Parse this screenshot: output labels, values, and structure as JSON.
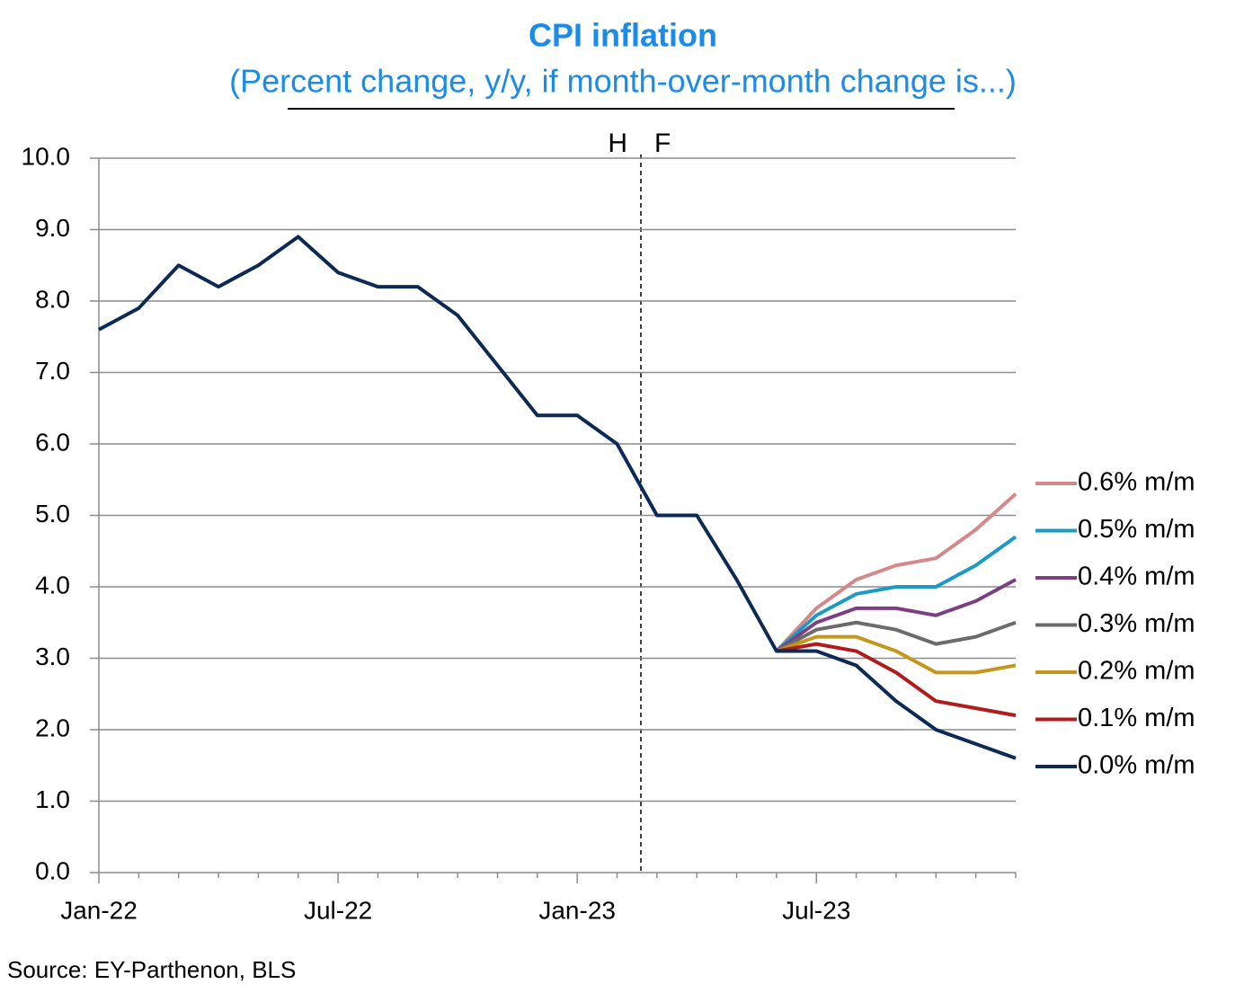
{
  "chart_data": {
    "type": "line",
    "title": "CPI inflation",
    "subtitle": "(Percent change, y/y, if month-over-month change is...)",
    "source": "Source: EY-Parthenon, BLS",
    "annotations": [
      "H",
      "F"
    ],
    "categories": [
      "Jan-22",
      null,
      null,
      null,
      null,
      null,
      "Jul-22",
      null,
      null,
      null,
      null,
      null,
      "Jan-23",
      null,
      null,
      null,
      null,
      null,
      "Jul-23",
      null,
      null,
      null,
      null,
      null
    ],
    "ylim": [
      0,
      10
    ],
    "yticks": [
      {
        "value": 0,
        "label": "0.0"
      },
      {
        "value": 1,
        "label": "1.0"
      },
      {
        "value": 2,
        "label": "2.0"
      },
      {
        "value": 3,
        "label": "3.0"
      },
      {
        "value": 4,
        "label": "4.0"
      },
      {
        "value": 5,
        "label": "5.0"
      },
      {
        "value": 6,
        "label": "6.0"
      },
      {
        "value": 7,
        "label": "7.0"
      },
      {
        "value": 8,
        "label": "8.0"
      },
      {
        "value": 9,
        "label": "9.0"
      },
      {
        "value": 10,
        "label": "10.0"
      }
    ],
    "grid": true,
    "legend": "right",
    "series": [
      {
        "name": "0.6% m/m",
        "color": "#d4888a",
        "values": [
          null,
          null,
          null,
          null,
          null,
          null,
          null,
          null,
          null,
          null,
          null,
          null,
          null,
          null,
          null,
          null,
          null,
          3.1,
          3.7,
          4.1,
          4.3,
          4.4,
          4.8,
          5.3
        ]
      },
      {
        "name": "0.5% m/m",
        "color": "#1a9bc4",
        "values": [
          null,
          null,
          null,
          null,
          null,
          null,
          null,
          null,
          null,
          null,
          null,
          null,
          null,
          null,
          null,
          null,
          null,
          3.1,
          3.6,
          3.9,
          4.0,
          4.0,
          4.3,
          4.7
        ]
      },
      {
        "name": "0.4% m/m",
        "color": "#7b3f82",
        "values": [
          null,
          null,
          null,
          null,
          null,
          null,
          null,
          null,
          null,
          null,
          null,
          null,
          null,
          null,
          null,
          null,
          null,
          3.1,
          3.5,
          3.7,
          3.7,
          3.6,
          3.8,
          4.1
        ]
      },
      {
        "name": "0.3% m/m",
        "color": "#6b6b6b",
        "values": [
          null,
          null,
          null,
          null,
          null,
          null,
          null,
          null,
          null,
          null,
          null,
          null,
          null,
          null,
          null,
          null,
          null,
          3.1,
          3.4,
          3.5,
          3.4,
          3.2,
          3.3,
          3.5
        ]
      },
      {
        "name": "0.2% m/m",
        "color": "#c4961c",
        "values": [
          null,
          null,
          null,
          null,
          null,
          null,
          null,
          null,
          null,
          null,
          null,
          null,
          null,
          null,
          null,
          null,
          null,
          3.1,
          3.3,
          3.3,
          3.1,
          2.8,
          2.8,
          2.9
        ]
      },
      {
        "name": "0.1% m/m",
        "color": "#b01c1c",
        "values": [
          null,
          null,
          null,
          null,
          null,
          null,
          null,
          null,
          null,
          null,
          null,
          null,
          null,
          null,
          null,
          null,
          null,
          3.1,
          3.2,
          3.1,
          2.8,
          2.4,
          2.3,
          2.2
        ]
      },
      {
        "name": "0.0% m/m",
        "color": "#0d2a54",
        "values": [
          7.6,
          7.9,
          8.5,
          8.2,
          8.5,
          8.9,
          8.4,
          8.2,
          8.2,
          7.8,
          7.1,
          6.4,
          6.4,
          6.0,
          5.0,
          5.0,
          4.1,
          3.1,
          3.1,
          2.9,
          2.4,
          2.0,
          1.8,
          1.6
        ]
      }
    ]
  }
}
